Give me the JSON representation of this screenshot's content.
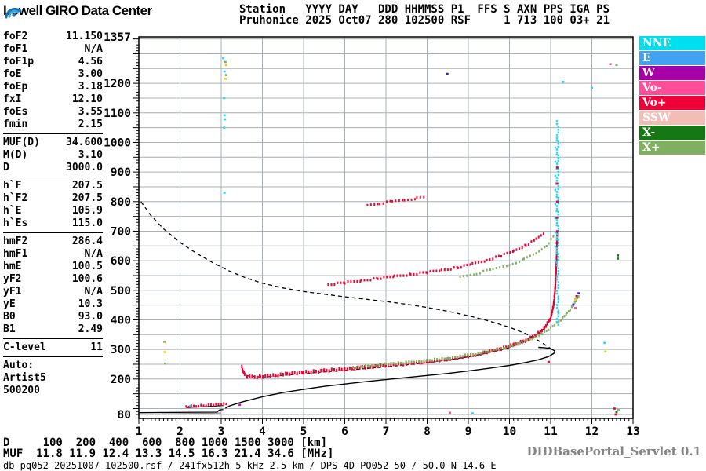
{
  "header": {
    "logo_text": "Lowell GIRO Data Center",
    "line1": "Station   YYYY DAY   DDD HHMMSS P1  FFS S AXN PPS IGA PS",
    "line2": "Pruhonice 2025 Oct07 280 102500 RSF     1 713 100 03+ 21"
  },
  "params": {
    "groups": [
      {
        "rows": [
          [
            "foF2",
            "11.150"
          ],
          [
            "foF1",
            "N/A"
          ],
          [
            "foF1p",
            "4.56"
          ],
          [
            "foE",
            "3.00"
          ],
          [
            "foEp",
            "3.18"
          ],
          [
            "fxI",
            "12.10"
          ],
          [
            "foEs",
            "3.55"
          ],
          [
            "fmin",
            "2.15"
          ]
        ]
      },
      {
        "rows": [
          [
            "MUF(D)",
            "34.600"
          ],
          [
            "M(D)",
            "3.10"
          ],
          [
            "D",
            "3000.0"
          ]
        ]
      },
      {
        "rows": [
          [
            "h`F",
            "207.5"
          ],
          [
            "h`F2",
            "207.5"
          ],
          [
            "h`E",
            "105.9"
          ],
          [
            "h`Es",
            "115.0"
          ]
        ]
      },
      {
        "rows": [
          [
            "hmF2",
            "286.4"
          ],
          [
            "hmF1",
            "N/A"
          ],
          [
            "hmE",
            "100.5"
          ],
          [
            "yF2",
            "100.6"
          ],
          [
            "yF1",
            "N/A"
          ],
          [
            "yE",
            "10.3"
          ],
          [
            "B0",
            "93.0"
          ],
          [
            "B1",
            "2.49"
          ]
        ]
      },
      {
        "rows": [
          [
            "C-level",
            "11"
          ]
        ]
      },
      {
        "rows": [
          [
            "Auto:",
            ""
          ],
          [
            "Artist5",
            ""
          ],
          [
            "500200",
            ""
          ]
        ]
      }
    ]
  },
  "footer": {
    "d_row": {
      "label": "D",
      "values": [
        "100",
        "200",
        "400",
        "600",
        "800",
        "1000",
        "1500",
        "3000"
      ],
      "unit": "[km]"
    },
    "muf_row": {
      "label": "MUF",
      "values": [
        "11.8",
        "11.9",
        "12.4",
        "13.3",
        "14.5",
        "16.3",
        "21.4",
        "34.6"
      ],
      "unit": "[MHz]"
    },
    "status_line": "db pq052 20251007 102500.rsf / 241fx512h 5 kHz 2.5 km / DPS-4D PQ052 50 / 50.0 N 14.6 E",
    "servlet_label": "DIDBasePortal_Servlet 0.1"
  },
  "chart_data": {
    "type": "scatter",
    "x_unit": "MHz",
    "y_unit": "km",
    "x_range": [
      1,
      13
    ],
    "y_range": [
      80,
      1357
    ],
    "grid": {
      "x_step": 1,
      "y_step": 50,
      "color": "#a6b0b8"
    },
    "x_tick_labels": [
      1,
      2,
      3,
      4,
      5,
      6,
      7,
      8,
      9,
      10,
      11,
      12,
      13
    ],
    "y_tick_labels": [
      1357,
      1200,
      1100,
      1000,
      900,
      800,
      700,
      600,
      500,
      400,
      300,
      200,
      80
    ],
    "legend": [
      {
        "label": "NNE",
        "color": "#00dff0"
      },
      {
        "label": "E",
        "color": "#42a1f0"
      },
      {
        "label": "W",
        "color": "#a800a8"
      },
      {
        "label": "Vo-",
        "color": "#ff4d98"
      },
      {
        "label": "Vo+",
        "color": "#f00038"
      },
      {
        "label": "SSW",
        "color": "#f2bdb5"
      },
      {
        "label": "X-",
        "color": "#157815"
      },
      {
        "label": "X+",
        "color": "#7fb05f"
      }
    ],
    "series": [
      {
        "name": "transmission-curve-dashed",
        "mode": "line",
        "color": "#000000",
        "dash": "5 4",
        "width": 1.3,
        "points": [
          [
            1.05,
            800
          ],
          [
            1.3,
            752
          ],
          [
            1.6,
            708
          ],
          [
            2.0,
            662
          ],
          [
            2.4,
            625
          ],
          [
            2.8,
            593
          ],
          [
            3.2,
            565
          ],
          [
            3.6,
            542
          ],
          [
            4.0,
            524
          ],
          [
            4.5,
            508
          ],
          [
            5.0,
            496
          ],
          [
            5.5,
            487
          ],
          [
            6.0,
            478
          ],
          [
            6.5,
            470
          ],
          [
            7.0,
            462
          ],
          [
            7.5,
            453
          ],
          [
            8.0,
            442
          ],
          [
            8.5,
            429
          ],
          [
            9.0,
            414
          ],
          [
            9.5,
            396
          ],
          [
            10.0,
            375
          ],
          [
            10.4,
            353
          ],
          [
            10.7,
            330
          ],
          [
            10.95,
            308
          ],
          [
            11.05,
            295
          ]
        ]
      },
      {
        "name": "true-height-profile",
        "mode": "line",
        "color": "#000000",
        "width": 1.4,
        "points": [
          [
            3.1,
            101
          ],
          [
            3.2,
            109
          ],
          [
            3.5,
            122
          ],
          [
            4.0,
            140
          ],
          [
            4.5,
            154
          ],
          [
            5.0,
            165
          ],
          [
            5.5,
            175
          ],
          [
            6.0,
            183
          ],
          [
            6.5,
            191
          ],
          [
            7.0,
            198
          ],
          [
            7.5,
            205
          ],
          [
            8.0,
            212
          ],
          [
            8.5,
            219
          ],
          [
            9.0,
            227
          ],
          [
            9.5,
            236
          ],
          [
            10.0,
            246
          ],
          [
            10.4,
            256
          ],
          [
            10.7,
            265
          ],
          [
            10.95,
            276
          ],
          [
            11.08,
            287
          ],
          [
            11.1,
            295
          ],
          [
            11.0,
            303
          ],
          [
            10.85,
            306
          ],
          [
            10.7,
            307
          ]
        ]
      },
      {
        "name": "baseline-black",
        "mode": "line",
        "color": "#000000",
        "width": 1.3,
        "points": [
          [
            1.0,
            86
          ],
          [
            2.9,
            88
          ],
          [
            2.95,
            95
          ],
          [
            3.05,
            97
          ]
        ]
      },
      {
        "name": "baseline-gray",
        "mode": "line",
        "color": "#8a8a8a",
        "width": 1.2,
        "points": [
          [
            1.55,
            82
          ],
          [
            3.0,
            85
          ]
        ]
      },
      {
        "name": "es-trace-black",
        "mode": "line",
        "color": "#000000",
        "width": 1.1,
        "points": [
          [
            2.15,
            103
          ],
          [
            2.7,
            107
          ],
          [
            3.05,
            110
          ]
        ]
      },
      {
        "name": "fitted-trace-dashed",
        "mode": "line",
        "color": "#000000",
        "dash": "4 3",
        "width": 1.1,
        "points": [
          [
            3.62,
            211
          ],
          [
            4.0,
            206
          ],
          [
            4.5,
            212
          ],
          [
            5.0,
            218
          ],
          [
            5.5,
            224
          ],
          [
            6.0,
            229
          ],
          [
            6.5,
            235
          ],
          [
            7.0,
            241
          ],
          [
            7.5,
            248
          ],
          [
            8.0,
            255
          ],
          [
            8.5,
            264
          ]
        ]
      },
      {
        "name": "fitted-trace-solid",
        "mode": "line",
        "color": "#000000",
        "width": 1.2,
        "points": [
          [
            8.5,
            264
          ],
          [
            9.0,
            275
          ],
          [
            9.4,
            286
          ],
          [
            9.8,
            299
          ],
          [
            10.1,
            312
          ],
          [
            10.4,
            329
          ],
          [
            10.65,
            348
          ],
          [
            10.85,
            371
          ],
          [
            11.0,
            402
          ],
          [
            11.08,
            450
          ],
          [
            11.12,
            510
          ],
          [
            11.14,
            570
          ],
          [
            11.16,
            646
          ]
        ]
      },
      {
        "name": "f-trace-ordinary",
        "mode": "dots",
        "color": "#ee0033",
        "dot_h": 4.4,
        "jitter": true,
        "points": [
          [
            3.5,
            242
          ],
          [
            3.53,
            228
          ],
          [
            3.57,
            215
          ],
          [
            3.63,
            208
          ],
          [
            3.75,
            206
          ],
          [
            3.95,
            208
          ],
          [
            4.2,
            212
          ],
          [
            4.6,
            217
          ],
          [
            5.0,
            222
          ],
          [
            5.5,
            228
          ],
          [
            6.0,
            234
          ],
          [
            6.5,
            240
          ],
          [
            7.0,
            246
          ],
          [
            7.5,
            252
          ],
          [
            8.0,
            259
          ],
          [
            8.5,
            268
          ],
          [
            9.0,
            278
          ],
          [
            9.4,
            289
          ],
          [
            9.8,
            302
          ],
          [
            10.1,
            315
          ],
          [
            10.4,
            331
          ],
          [
            10.65,
            350
          ],
          [
            10.85,
            373
          ],
          [
            11.0,
            405
          ],
          [
            11.07,
            450
          ],
          [
            11.11,
            510
          ],
          [
            11.13,
            570
          ],
          [
            11.15,
            635
          ],
          [
            11.16,
            700
          ]
        ]
      },
      {
        "name": "f-trace-extraordinary",
        "mode": "dots",
        "color": "#7fb05f",
        "dot_h": 3.0,
        "jitter": true,
        "points": [
          [
            6.2,
            240
          ],
          [
            6.6,
            245
          ],
          [
            7.0,
            250
          ],
          [
            7.5,
            256
          ],
          [
            8.0,
            263
          ],
          [
            8.5,
            271
          ],
          [
            9.0,
            281
          ],
          [
            9.5,
            293
          ],
          [
            9.9,
            305
          ],
          [
            10.2,
            318
          ],
          [
            10.5,
            334
          ],
          [
            10.8,
            354
          ],
          [
            11.05,
            378
          ],
          [
            11.25,
            400
          ],
          [
            11.4,
            422
          ],
          [
            11.52,
            444
          ],
          [
            11.62,
            466
          ],
          [
            11.7,
            487
          ]
        ]
      },
      {
        "name": "second-order-o",
        "mode": "dots",
        "color": "#ee0033",
        "dot_h": 3.2,
        "step": 4,
        "jitter": true,
        "points": [
          [
            5.6,
            519
          ],
          [
            6.0,
            526
          ],
          [
            6.4,
            533
          ],
          [
            6.8,
            540
          ],
          [
            7.2,
            547
          ],
          [
            7.6,
            554
          ],
          [
            8.0,
            561
          ],
          [
            8.35,
            568
          ],
          [
            8.75,
            577
          ],
          [
            9.1,
            589
          ],
          [
            9.45,
            602
          ],
          [
            9.8,
            617
          ],
          [
            10.1,
            633
          ],
          [
            10.4,
            652
          ],
          [
            10.65,
            672
          ],
          [
            10.85,
            695
          ]
        ]
      },
      {
        "name": "second-order-x",
        "mode": "dots",
        "color": "#7fb05f",
        "dot_h": 3.0,
        "step": 4.5,
        "jitter": true,
        "points": [
          [
            8.8,
            546
          ],
          [
            9.2,
            557
          ],
          [
            9.6,
            571
          ],
          [
            10.0,
            586
          ],
          [
            10.35,
            604
          ],
          [
            10.65,
            625
          ],
          [
            10.9,
            652
          ],
          [
            11.08,
            682
          ]
        ]
      },
      {
        "name": "second-order-upper-fragment",
        "mode": "dots",
        "color": "#ee0033",
        "dot_h": 3.0,
        "step": 4.5,
        "jitter": true,
        "points": [
          [
            6.55,
            788
          ],
          [
            6.85,
            794
          ],
          [
            7.15,
            800
          ],
          [
            7.45,
            806
          ],
          [
            7.75,
            811
          ],
          [
            8.0,
            815
          ]
        ]
      },
      {
        "name": "es-trace",
        "mode": "dots",
        "color": "#ee0033",
        "dot_h": 3.2,
        "jitter": true,
        "points": [
          [
            2.15,
            107
          ],
          [
            2.45,
            110
          ],
          [
            2.75,
            112
          ],
          [
            3.0,
            114
          ],
          [
            3.15,
            116
          ]
        ]
      }
    ],
    "spread_columns": [
      {
        "name": "spread-f-main",
        "x": 11.17,
        "from": 378,
        "to": 1075,
        "color": "#29d8f0",
        "step": 3.6
      },
      {
        "name": "spread-f-sparse",
        "x": 11.13,
        "from": 600,
        "to": 1010,
        "color": "#29d8f0",
        "step": 9
      }
    ],
    "scatter": [
      [
        11.15,
        660,
        "#ee0033"
      ],
      [
        11.16,
        700,
        "#ee0033"
      ],
      [
        11.15,
        745,
        "#ee0033"
      ],
      [
        11.16,
        800,
        "#ee0033"
      ],
      [
        11.15,
        860,
        "#ee0033"
      ],
      [
        11.16,
        915,
        "#ee0033"
      ],
      [
        3.05,
        1285,
        "#29d8f0"
      ],
      [
        3.1,
        1272,
        "#7fb05f"
      ],
      [
        3.12,
        1262,
        "#e8d000"
      ],
      [
        3.08,
        1240,
        "#29d8f0"
      ],
      [
        3.12,
        1228,
        "#7fb05f"
      ],
      [
        3.1,
        1215,
        "#e8d000"
      ],
      [
        3.07,
        1150,
        "#29d8f0"
      ],
      [
        3.08,
        1092,
        "#29d8f0"
      ],
      [
        3.09,
        1078,
        "#29d8f0"
      ],
      [
        3.07,
        1050,
        "#29d8f0"
      ],
      [
        3.08,
        830,
        "#29d8f0"
      ],
      [
        8.49,
        1232,
        "#2222cc"
      ],
      [
        11.3,
        1205,
        "#29d8f0"
      ],
      [
        12.0,
        1185,
        "#29d8f0"
      ],
      [
        12.45,
        1265,
        "#ff4d98"
      ],
      [
        12.6,
        1262,
        "#7fb05f"
      ],
      [
        12.63,
        618,
        "#157815"
      ],
      [
        12.63,
        607,
        "#157815"
      ],
      [
        12.31,
        322,
        "#29d8f0"
      ],
      [
        12.33,
        293,
        "#e8d000"
      ],
      [
        1.62,
        326,
        "#7fb05f"
      ],
      [
        1.63,
        291,
        "#e8d000"
      ],
      [
        1.64,
        252,
        "#7fb05f"
      ],
      [
        8.55,
        86,
        "#ff4d98"
      ],
      [
        9.1,
        84,
        "#29d8f0"
      ],
      [
        12.55,
        100,
        "#ee0033"
      ],
      [
        12.6,
        88,
        "#157815"
      ],
      [
        12.65,
        95,
        "#7fb05f"
      ],
      [
        12.58,
        80,
        "#ee0033"
      ],
      [
        3.45,
        113,
        "#cc00cc"
      ],
      [
        10.95,
        258,
        "#ee0033"
      ],
      [
        2.25,
        109,
        "#29d8f0"
      ],
      [
        11.55,
        452,
        "#2222cc"
      ],
      [
        11.6,
        470,
        "#e8d000"
      ],
      [
        11.63,
        480,
        "#ee0033"
      ],
      [
        11.68,
        490,
        "#2222cc"
      ],
      [
        11.6,
        440,
        "#ff4d98"
      ]
    ]
  }
}
